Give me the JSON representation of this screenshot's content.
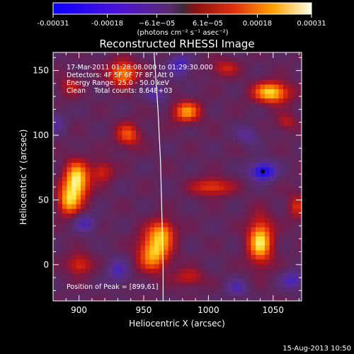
{
  "chart_data": {
    "type": "heatmap",
    "title": "Reconstructed RHESSI Image",
    "xlabel": "Heliocentric X (arcsec)",
    "ylabel": "Heliocentric Y (arcsec)",
    "xlim": [
      880,
      1072
    ],
    "ylim": [
      -28,
      164
    ],
    "x_ticks": [
      900,
      950,
      1000,
      1050
    ],
    "y_ticks": [
      0,
      50,
      100,
      150
    ],
    "colorbar": {
      "range": [
        -0.00031,
        0.00031
      ],
      "tick_values": [
        -0.00031,
        -0.00018,
        -6.1e-05,
        6.1e-05,
        0.00018,
        0.00031
      ],
      "tick_labels": [
        "-0.00031",
        "-0.00018",
        "−6.1e−05",
        "6.1e−05",
        "0.00018",
        "0.00031"
      ],
      "unit_label": "(photons cm⁻² s⁻¹ asec⁻²)"
    },
    "annotations": [
      "17-Mar-2011 01:28:08.000 to 01:29:30.000",
      "Detectors: 4F 5F 6F 7F 8F, Att 0",
      "Energy Range: 25.0 - 50.0 keV",
      "Clean    Total counts: 8.64E+03"
    ],
    "peak_label": "Position of Peak = [899,61]",
    "peak_position": [
      899,
      61
    ],
    "minimum_marker": [
      1042,
      72
    ],
    "limb_arc": [
      [
        958,
        164
      ],
      [
        961,
        120
      ],
      [
        963,
        80
      ],
      [
        964,
        40
      ],
      [
        965,
        0
      ],
      [
        965,
        -28
      ]
    ],
    "sources": [
      {
        "x": 898,
        "y": 64,
        "amp": 1.0,
        "sx": 7,
        "sy": 11
      },
      {
        "x": 891,
        "y": 48,
        "amp": 0.6,
        "sx": 6,
        "sy": 8
      },
      {
        "x": 958,
        "y": 10,
        "amp": 0.85,
        "sx": 9,
        "sy": 11
      },
      {
        "x": 965,
        "y": 26,
        "amp": 0.55,
        "sx": 7,
        "sy": 7
      },
      {
        "x": 1040,
        "y": 18,
        "amp": 0.9,
        "sx": 7,
        "sy": 13
      },
      {
        "x": 1049,
        "y": 133,
        "amp": 0.9,
        "sx": 10,
        "sy": 6
      },
      {
        "x": 1060,
        "y": 110,
        "amp": 0.35,
        "sx": 6,
        "sy": 5
      },
      {
        "x": 934,
        "y": 148,
        "amp": 0.75,
        "sx": 8,
        "sy": 7
      },
      {
        "x": 938,
        "y": 100,
        "amp": 0.55,
        "sx": 7,
        "sy": 7
      },
      {
        "x": 983,
        "y": 118,
        "amp": 0.7,
        "sx": 8,
        "sy": 6
      },
      {
        "x": 1003,
        "y": 60,
        "amp": 0.55,
        "sx": 11,
        "sy": 5
      },
      {
        "x": 918,
        "y": 72,
        "amp": 0.45,
        "sx": 6,
        "sy": 6
      },
      {
        "x": 900,
        "y": 0,
        "amp": 0.5,
        "sx": 7,
        "sy": 6
      },
      {
        "x": 1012,
        "y": 152,
        "amp": 0.4,
        "sx": 8,
        "sy": 5
      },
      {
        "x": 893,
        "y": 138,
        "amp": 0.35,
        "sx": 6,
        "sy": 6
      },
      {
        "x": 985,
        "y": -10,
        "amp": 0.4,
        "sx": 8,
        "sy": 5
      },
      {
        "x": 1068,
        "y": 45,
        "amp": 0.4,
        "sx": 5,
        "sy": 8
      },
      {
        "x": 1042,
        "y": 72,
        "amp": -0.9,
        "sx": 7,
        "sy": 5
      },
      {
        "x": 978,
        "y": 154,
        "amp": -0.55,
        "sx": 6,
        "sy": 6
      },
      {
        "x": 905,
        "y": 32,
        "amp": -0.45,
        "sx": 6,
        "sy": 5
      },
      {
        "x": 930,
        "y": -5,
        "amp": -0.45,
        "sx": 6,
        "sy": 7
      },
      {
        "x": 1022,
        "y": -18,
        "amp": -0.4,
        "sx": 6,
        "sy": 5
      },
      {
        "x": 1065,
        "y": -12,
        "amp": -0.5,
        "sx": 6,
        "sy": 5
      },
      {
        "x": 960,
        "y": 132,
        "amp": -0.4,
        "sx": 6,
        "sy": 5
      },
      {
        "x": 1030,
        "y": 100,
        "amp": -0.35,
        "sx": 6,
        "sy": 5
      },
      {
        "x": 882,
        "y": 110,
        "amp": -0.35,
        "sx": 5,
        "sy": 6
      }
    ]
  },
  "timestamp": "15-Aug-2013 10:50",
  "colors": {
    "grid_dark": "#1a1070",
    "axis": "#ffffff",
    "limb": "#ffffff"
  }
}
